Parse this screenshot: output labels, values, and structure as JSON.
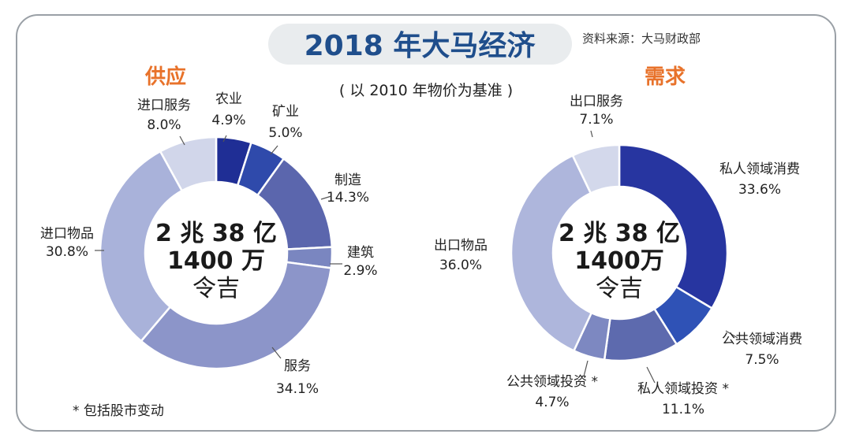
{
  "title": "2018 年大马经济",
  "source": "资料来源：大马财政部",
  "subtitle": "( 以 2010 年物价为基准 )",
  "footnote": "* 包括股市变动",
  "colors": {
    "title_text": "#1f4e8c",
    "title_bg": "#e9ecee",
    "section_title": "#e8722a",
    "label_text": "#222222",
    "center_text": "#1a1a1a"
  },
  "chart_data": [
    {
      "type": "donut",
      "title": "供应",
      "center": {
        "line1": "2 兆 38 亿",
        "line2": "1400 万",
        "line3": "令吉"
      },
      "slices": [
        {
          "name": "农业",
          "value": 4.9,
          "display": "4.9%",
          "color": "#1f2e95"
        },
        {
          "name": "矿业",
          "value": 5.0,
          "display": "5.0%",
          "color": "#2f4aab"
        },
        {
          "name": "制造",
          "value": 14.3,
          "display": "14.3%",
          "color": "#5b66ad"
        },
        {
          "name": "建筑",
          "value": 2.9,
          "display": "2.9%",
          "color": "#7a86c0"
        },
        {
          "name": "服务",
          "value": 34.1,
          "display": "34.1%",
          "color": "#8c95c9"
        },
        {
          "name": "进口物品",
          "value": 30.8,
          "display": "30.8%",
          "color": "#a9b2da"
        },
        {
          "name": "进口服务",
          "value": 8.0,
          "display": "8.0%",
          "color": "#d1d6ea"
        }
      ]
    },
    {
      "type": "donut",
      "title": "需求",
      "center": {
        "line1": "2 兆 38 亿",
        "line2": "1400万",
        "line3": "令吉"
      },
      "slices": [
        {
          "name": "私人领域消费",
          "value": 33.6,
          "display": "33.6%",
          "color": "#2735a0"
        },
        {
          "name": "公共领域消费",
          "value": 7.5,
          "display": "7.5%",
          "color": "#2f52b6"
        },
        {
          "name": "私人领域投资 *",
          "value": 11.1,
          "display": "11.1%",
          "color": "#5d6aae"
        },
        {
          "name": "公共领域投资 *",
          "value": 4.7,
          "display": "4.7%",
          "color": "#7d88c1"
        },
        {
          "name": "出口物品",
          "value": 36.0,
          "display": "36.0%",
          "color": "#aeb6dc"
        },
        {
          "name": "出口服务",
          "value": 7.1,
          "display": "7.1%",
          "color": "#d3d8eb"
        }
      ]
    }
  ]
}
